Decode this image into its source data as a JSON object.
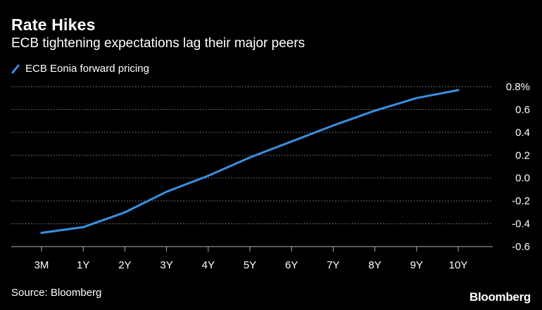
{
  "header": {
    "title": "Rate Hikes",
    "subtitle": "ECB tightening expectations lag their major peers"
  },
  "legend": {
    "label": "ECB Eonia forward pricing"
  },
  "footer": {
    "source": "Source: Bloomberg",
    "brand": "Bloomberg"
  },
  "colors": {
    "background": "#000000",
    "series": "#3a8fe0",
    "grid": "#8a8a8a",
    "text": "#ffffff"
  },
  "chart_data": {
    "type": "line",
    "categories": [
      "3M",
      "1Y",
      "2Y",
      "3Y",
      "4Y",
      "5Y",
      "6Y",
      "7Y",
      "8Y",
      "9Y",
      "10Y"
    ],
    "series": [
      {
        "name": "ECB Eonia forward pricing",
        "values": [
          -0.48,
          -0.43,
          -0.3,
          -0.12,
          0.02,
          0.18,
          0.32,
          0.46,
          0.59,
          0.7,
          0.77
        ]
      }
    ],
    "y_ticks": [
      {
        "value": 0.8,
        "label": "0.8%"
      },
      {
        "value": 0.6,
        "label": "0.6"
      },
      {
        "value": 0.4,
        "label": "0.4"
      },
      {
        "value": 0.2,
        "label": "0.2"
      },
      {
        "value": 0.0,
        "label": "0.0"
      },
      {
        "value": -0.2,
        "label": "-0.2"
      },
      {
        "value": -0.4,
        "label": "-0.4"
      },
      {
        "value": -0.6,
        "label": "-0.6"
      }
    ],
    "ylim": [
      -0.6,
      0.8
    ],
    "grid": true,
    "legend_position": "top-left",
    "y_axis_side": "right"
  }
}
